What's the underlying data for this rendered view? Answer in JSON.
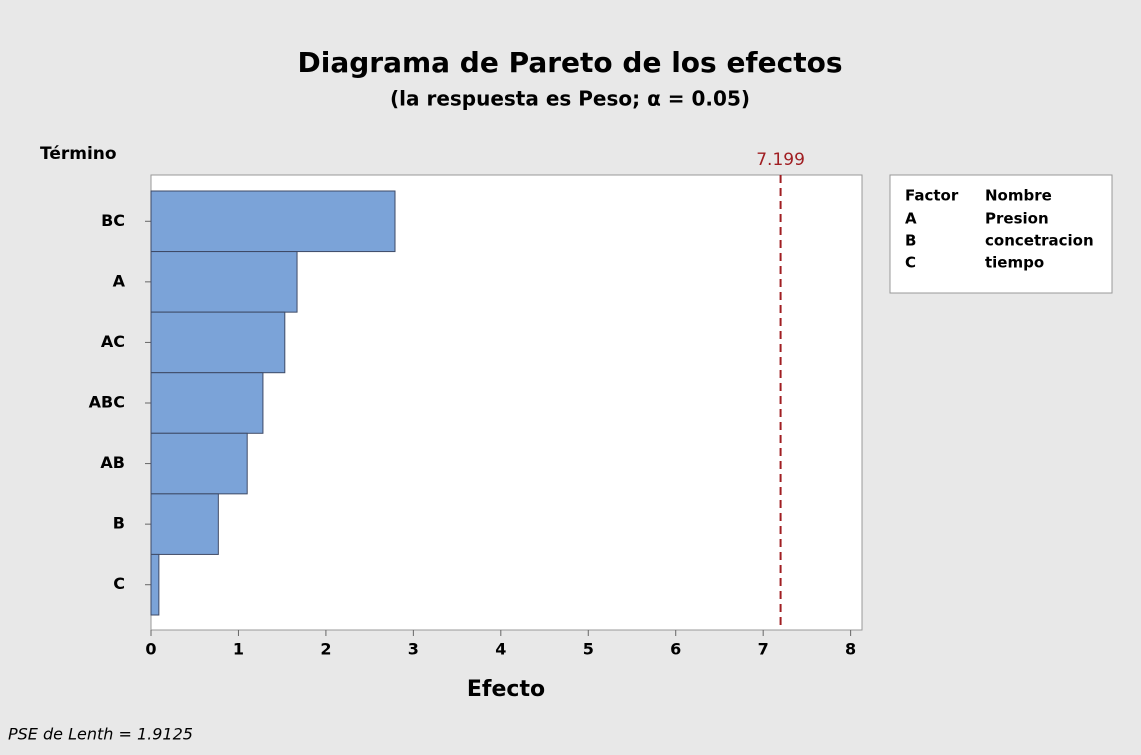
{
  "chart_data": {
    "type": "bar",
    "orientation": "horizontal",
    "title": "Diagrama de Pareto de los efectos",
    "subtitle": "(la respuesta es Peso; α = 0.05)",
    "y_axis_label": "Término",
    "x_axis_label": "Efecto",
    "categories": [
      "BC",
      "A",
      "AC",
      "ABC",
      "AB",
      "B",
      "C"
    ],
    "values": [
      2.79,
      1.67,
      1.53,
      1.28,
      1.1,
      0.77,
      0.09
    ],
    "color": "#7ba3d8",
    "xlim": [
      0,
      8.13
    ],
    "xticks": [
      0,
      1,
      2,
      3,
      4,
      5,
      6,
      7,
      8
    ],
    "reference_line": {
      "value": 7.199,
      "color": "#a01e22"
    },
    "legend_table": {
      "headers": [
        "Factor",
        "Nombre"
      ],
      "rows": [
        [
          "A",
          "Presion"
        ],
        [
          "B",
          "concetracion"
        ],
        [
          "C",
          "tiempo"
        ]
      ]
    },
    "footnote": "PSE de Lenth = 1.9125"
  }
}
